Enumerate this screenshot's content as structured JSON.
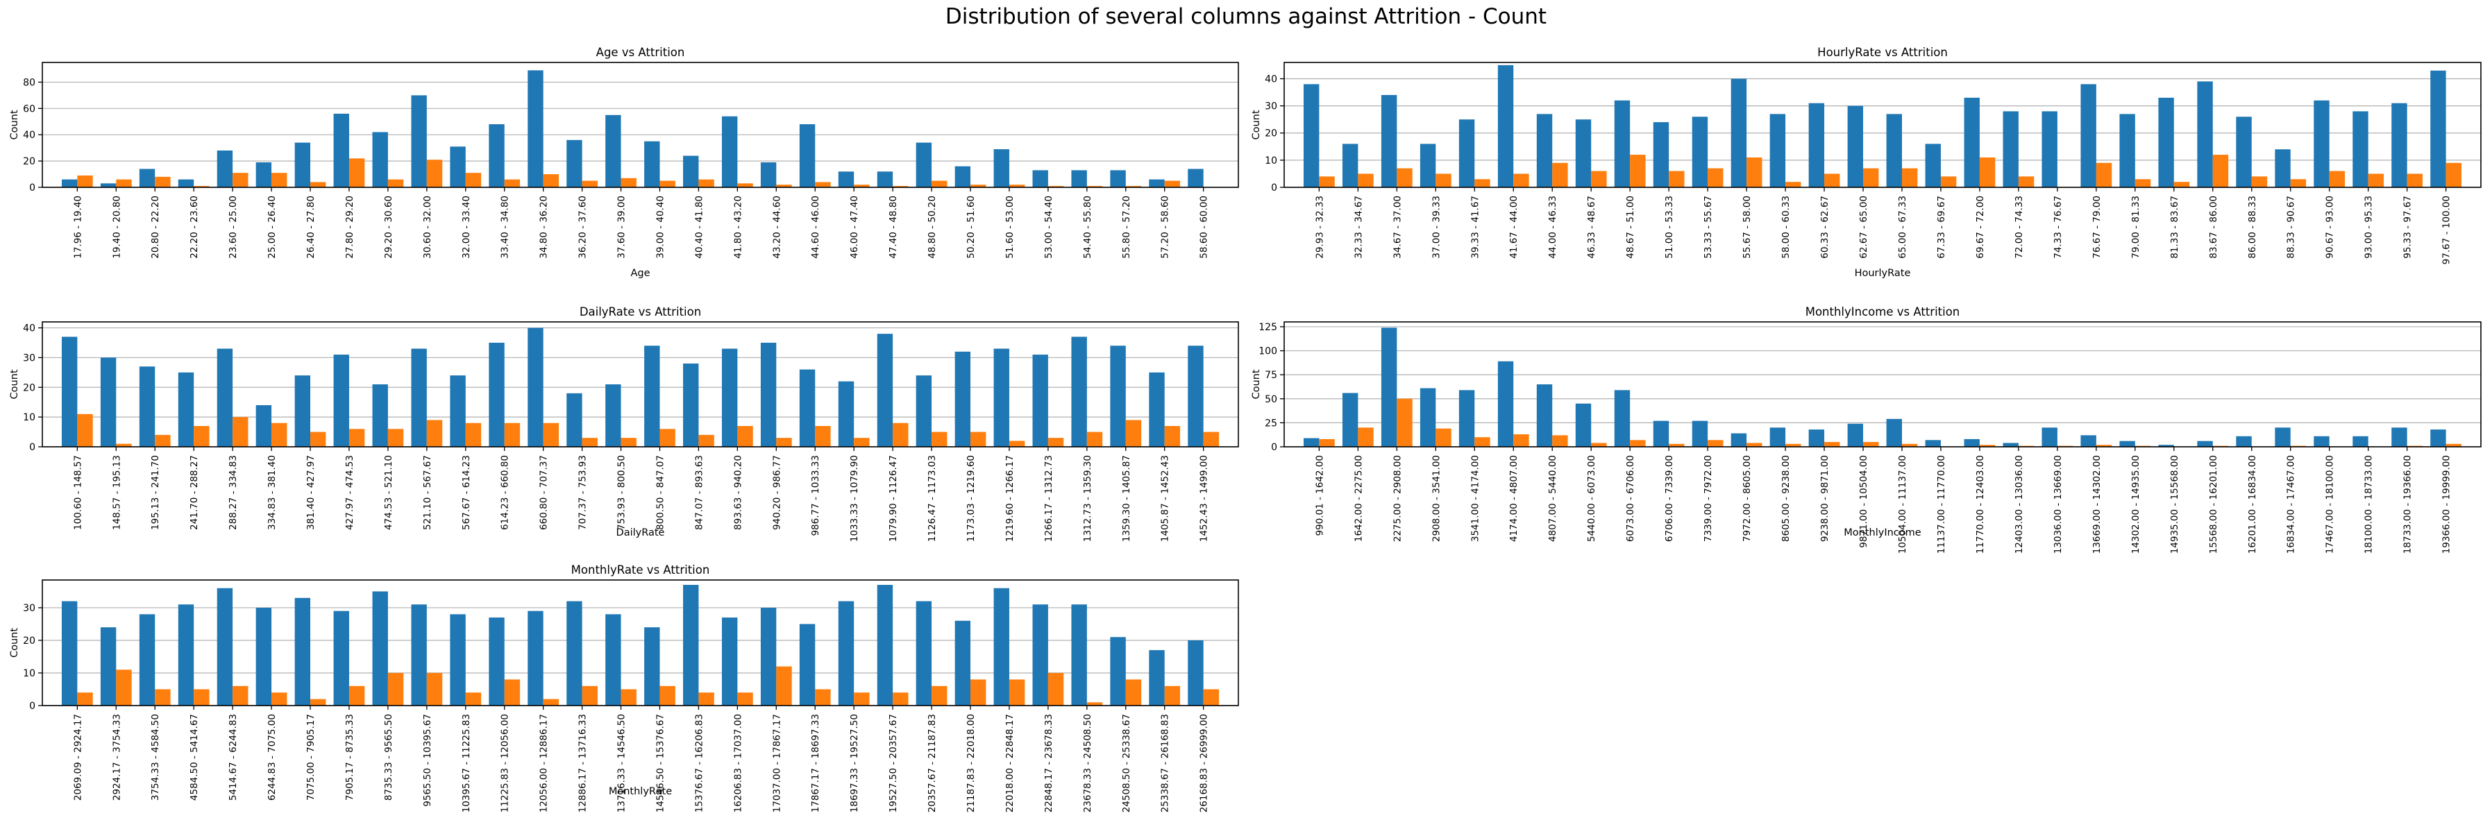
{
  "figure": {
    "suptitle": "Distribution of several columns against Attrition - Count"
  },
  "colors": {
    "series_no": "#1f77b4",
    "series_yes": "#ff7f0e",
    "grid": "#b0b0b0",
    "axes": "#000000"
  },
  "chart_data": [
    {
      "type": "bar",
      "title": "Age vs Attrition",
      "xlabel": "Age",
      "ylabel": "Count",
      "ylim": [
        0,
        95
      ],
      "yticks": [
        0,
        20,
        40,
        60,
        80
      ],
      "grid": "horizontal",
      "categories": [
        "17.96 - 19.40",
        "19.40 - 20.80",
        "20.80 - 22.20",
        "22.20 - 23.60",
        "23.60 - 25.00",
        "25.00 - 26.40",
        "26.40 - 27.80",
        "27.80 - 29.20",
        "29.20 - 30.60",
        "30.60 - 32.00",
        "32.00 - 33.40",
        "33.40 - 34.80",
        "34.80 - 36.20",
        "36.20 - 37.60",
        "37.60 - 39.00",
        "39.00 - 40.40",
        "40.40 - 41.80",
        "41.80 - 43.20",
        "43.20 - 44.60",
        "44.60 - 46.00",
        "46.00 - 47.40",
        "47.40 - 48.80",
        "48.80 - 50.20",
        "50.20 - 51.60",
        "51.60 - 53.00",
        "53.00 - 54.40",
        "54.40 - 55.80",
        "55.80 - 57.20",
        "57.20 - 58.60",
        "58.60 - 60.00"
      ],
      "series": [
        {
          "values": [
            6,
            3,
            14,
            6,
            28,
            19,
            34,
            56,
            42,
            70,
            31,
            48,
            89,
            36,
            55,
            35,
            24,
            54,
            19,
            48,
            12,
            12,
            34,
            16,
            29,
            13,
            13,
            13,
            6,
            14
          ]
        },
        {
          "values": [
            9,
            6,
            8,
            1,
            11,
            11,
            4,
            22,
            6,
            21,
            11,
            6,
            10,
            5,
            7,
            5,
            6,
            3,
            2,
            4,
            2,
            1,
            5,
            2,
            2,
            1,
            1,
            1,
            5,
            0
          ]
        }
      ]
    },
    {
      "type": "bar",
      "title": "HourlyRate vs Attrition",
      "xlabel": "HourlyRate",
      "ylabel": "Count",
      "ylim": [
        0,
        46
      ],
      "yticks": [
        0,
        10,
        20,
        30,
        40
      ],
      "grid": "horizontal",
      "categories": [
        "29.93 - 32.33",
        "32.33 - 34.67",
        "34.67 - 37.00",
        "37.00 - 39.33",
        "39.33 - 41.67",
        "41.67 - 44.00",
        "44.00 - 46.33",
        "46.33 - 48.67",
        "48.67 - 51.00",
        "51.00 - 53.33",
        "53.33 - 55.67",
        "55.67 - 58.00",
        "58.00 - 60.33",
        "60.33 - 62.67",
        "62.67 - 65.00",
        "65.00 - 67.33",
        "67.33 - 69.67",
        "69.67 - 72.00",
        "72.00 - 74.33",
        "74.33 - 76.67",
        "76.67 - 79.00",
        "79.00 - 81.33",
        "81.33 - 83.67",
        "83.67 - 86.00",
        "86.00 - 88.33",
        "88.33 - 90.67",
        "90.67 - 93.00",
        "93.00 - 95.33",
        "95.33 - 97.67",
        "97.67 - 100.00"
      ],
      "series": [
        {
          "values": [
            38,
            16,
            34,
            16,
            25,
            45,
            27,
            25,
            32,
            24,
            26,
            40,
            27,
            31,
            30,
            27,
            16,
            33,
            28,
            28,
            38,
            27,
            33,
            39,
            26,
            14,
            32,
            28,
            31,
            43
          ]
        },
        {
          "values": [
            4,
            5,
            7,
            5,
            3,
            5,
            9,
            6,
            12,
            6,
            7,
            11,
            2,
            5,
            7,
            7,
            4,
            11,
            4,
            0,
            9,
            3,
            2,
            12,
            4,
            3,
            6,
            5,
            5,
            9
          ]
        }
      ]
    },
    {
      "type": "bar",
      "title": "DailyRate vs Attrition",
      "xlabel": "DailyRate",
      "ylabel": "Count",
      "ylim": [
        0,
        42
      ],
      "yticks": [
        0,
        10,
        20,
        30,
        40
      ],
      "grid": "horizontal",
      "categories": [
        "100.60 - 148.57",
        "148.57 - 195.13",
        "195.13 - 241.70",
        "241.70 - 288.27",
        "288.27 - 334.83",
        "334.83 - 381.40",
        "381.40 - 427.97",
        "427.97 - 474.53",
        "474.53 - 521.10",
        "521.10 - 567.67",
        "567.67 - 614.23",
        "614.23 - 660.80",
        "660.80 - 707.37",
        "707.37 - 753.93",
        "753.93 - 800.50",
        "800.50 - 847.07",
        "847.07 - 893.63",
        "893.63 - 940.20",
        "940.20 - 986.77",
        "986.77 - 1033.33",
        "1033.33 - 1079.90",
        "1079.90 - 1126.47",
        "1126.47 - 1173.03",
        "1173.03 - 1219.60",
        "1219.60 - 1266.17",
        "1266.17 - 1312.73",
        "1312.73 - 1359.30",
        "1359.30 - 1405.87",
        "1405.87 - 1452.43",
        "1452.43 - 1499.00"
      ],
      "series": [
        {
          "values": [
            37,
            30,
            27,
            25,
            33,
            14,
            24,
            31,
            21,
            33,
            24,
            35,
            40,
            18,
            21,
            34,
            28,
            33,
            35,
            26,
            22,
            38,
            24,
            32,
            33,
            31,
            37,
            34,
            25,
            34
          ]
        },
        {
          "values": [
            11,
            1,
            4,
            7,
            10,
            8,
            5,
            6,
            6,
            9,
            8,
            8,
            8,
            3,
            3,
            6,
            4,
            7,
            3,
            7,
            3,
            8,
            5,
            5,
            2,
            3,
            5,
            9,
            7,
            5
          ]
        }
      ]
    },
    {
      "type": "bar",
      "title": "MonthlyIncome vs Attrition",
      "xlabel": "MonthlyIncome",
      "ylabel": "Count",
      "ylim": [
        0,
        130
      ],
      "yticks": [
        0,
        25,
        50,
        75,
        100,
        125
      ],
      "grid": "horizontal",
      "categories": [
        "990.01 - 1642.00",
        "1642.00 - 2275.00",
        "2275.00 - 2908.00",
        "2908.00 - 3541.00",
        "3541.00 - 4174.00",
        "4174.00 - 4807.00",
        "4807.00 - 5440.00",
        "5440.00 - 6073.00",
        "6073.00 - 6706.00",
        "6706.00 - 7339.00",
        "7339.00 - 7972.00",
        "7972.00 - 8605.00",
        "8605.00 - 9238.00",
        "9238.00 - 9871.00",
        "9871.00 - 10504.00",
        "10504.00 - 11137.00",
        "11137.00 - 11770.00",
        "11770.00 - 12403.00",
        "12403.00 - 13036.00",
        "13036.00 - 13669.00",
        "13669.00 - 14302.00",
        "14302.00 - 14935.00",
        "14935.00 - 15568.00",
        "15568.00 - 16201.00",
        "16201.00 - 16834.00",
        "16834.00 - 17467.00",
        "17467.00 - 18100.00",
        "18100.00 - 18733.00",
        "18733.00 - 19366.00",
        "19366.00 - 19999.00"
      ],
      "series": [
        {
          "values": [
            9,
            56,
            124,
            61,
            59,
            89,
            65,
            45,
            59,
            27,
            27,
            14,
            20,
            18,
            24,
            29,
            7,
            8,
            4,
            20,
            12,
            6,
            2,
            6,
            11,
            20,
            11,
            11,
            20,
            18
          ]
        },
        {
          "values": [
            8,
            20,
            50,
            19,
            10,
            13,
            12,
            4,
            7,
            3,
            7,
            4,
            3,
            5,
            5,
            3,
            0,
            2,
            1,
            1,
            2,
            1,
            0,
            1,
            0,
            1,
            0,
            0,
            1,
            3
          ]
        }
      ]
    },
    {
      "type": "bar",
      "title": "MonthlyRate vs Attrition",
      "xlabel": "MonthlyRate",
      "ylabel": "Count",
      "ylim": [
        0,
        38.5
      ],
      "yticks": [
        0,
        10,
        20,
        30
      ],
      "grid": "horizontal",
      "categories": [
        "2069.09 - 2924.17",
        "2924.17 - 3754.33",
        "3754.33 - 4584.50",
        "4584.50 - 5414.67",
        "5414.67 - 6244.83",
        "6244.83 - 7075.00",
        "7075.00 - 7905.17",
        "7905.17 - 8735.33",
        "8735.33 - 9565.50",
        "9565.50 - 10395.67",
        "10395.67 - 11225.83",
        "11225.83 - 12056.00",
        "12056.00 - 12886.17",
        "12886.17 - 13716.33",
        "13716.33 - 14546.50",
        "14546.50 - 15376.67",
        "15376.67 - 16206.83",
        "16206.83 - 17037.00",
        "17037.00 - 17867.17",
        "17867.17 - 18697.33",
        "18697.33 - 19527.50",
        "19527.50 - 20357.67",
        "20357.67 - 21187.83",
        "21187.83 - 22018.00",
        "22018.00 - 22848.17",
        "22848.17 - 23678.33",
        "23678.33 - 24508.50",
        "24508.50 - 25338.67",
        "25338.67 - 26168.83",
        "26168.83 - 26999.00"
      ],
      "series": [
        {
          "values": [
            32,
            24,
            28,
            31,
            36,
            30,
            33,
            29,
            35,
            31,
            28,
            27,
            29,
            32,
            28,
            24,
            37,
            27,
            30,
            25,
            32,
            37,
            32,
            26,
            36,
            31,
            31,
            21,
            17,
            20
          ]
        },
        {
          "values": [
            4,
            11,
            5,
            5,
            6,
            4,
            2,
            6,
            10,
            10,
            4,
            8,
            2,
            6,
            5,
            6,
            4,
            4,
            12,
            5,
            4,
            4,
            6,
            8,
            8,
            10,
            1,
            8,
            6,
            5
          ]
        }
      ]
    }
  ]
}
